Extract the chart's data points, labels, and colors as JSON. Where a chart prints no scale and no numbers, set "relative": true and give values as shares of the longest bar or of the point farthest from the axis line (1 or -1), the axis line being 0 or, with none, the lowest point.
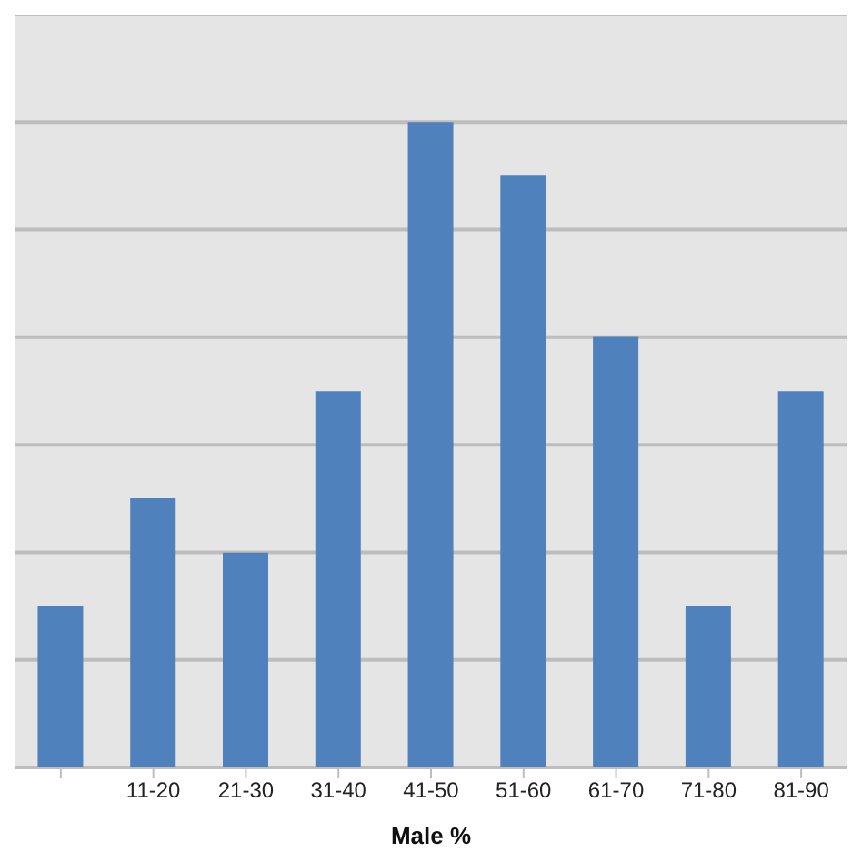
{
  "chart_data": {
    "type": "bar",
    "xlabel": "Male %",
    "categories": [
      null,
      "11-20",
      "21-30",
      "31-40",
      "41-50",
      "51-60",
      "61-70",
      "71-80",
      "81-90"
    ],
    "values": [
      0.25,
      0.417,
      0.333,
      0.583,
      1,
      0.917,
      0.667,
      0.25,
      0.583
    ],
    "color": "#4f81bd",
    "relative": true,
    "grid": "y"
  }
}
